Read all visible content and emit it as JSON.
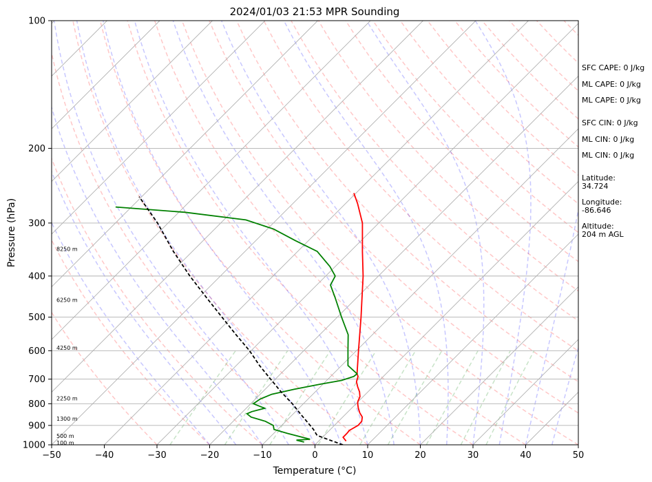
{
  "chart_data": {
    "type": "line",
    "title": "2024/01/03 21:53 MPR Sounding",
    "xlabel": "Temperature (°C)",
    "ylabel": "Pressure (hPa)",
    "xlim": [
      -50,
      50
    ],
    "ylim": [
      1000,
      100
    ],
    "yscale": "log",
    "skew": true,
    "grid": true,
    "x_ticks": [
      "−50",
      "−40",
      "−30",
      "−20",
      "−10",
      "0",
      "10",
      "20",
      "30",
      "40",
      "50"
    ],
    "y_ticks": [
      {
        "p": 1000,
        "label": "1000"
      },
      {
        "p": 900,
        "label": "900"
      },
      {
        "p": 800,
        "label": "800"
      },
      {
        "p": 700,
        "label": "700"
      },
      {
        "p": 600,
        "label": "600"
      },
      {
        "p": 500,
        "label": "500"
      },
      {
        "p": 400,
        "label": "400"
      },
      {
        "p": 300,
        "label": "300"
      },
      {
        "p": 200,
        "label": "200"
      },
      {
        "p": 100,
        "label": "100"
      }
    ],
    "series": [
      {
        "kind": "temperature",
        "color": "#ff0000",
        "points": [
          [
            980,
            5.2
          ],
          [
            960,
            3.9
          ],
          [
            940,
            3.9
          ],
          [
            925,
            3.8
          ],
          [
            900,
            4.5
          ],
          [
            880,
            4.4
          ],
          [
            860,
            3.7
          ],
          [
            840,
            2.4
          ],
          [
            820,
            1.3
          ],
          [
            800,
            0.3
          ],
          [
            790,
            -0.1
          ],
          [
            770,
            -0.6
          ],
          [
            750,
            -1.6
          ],
          [
            730,
            -2.9
          ],
          [
            710,
            -4.1
          ],
          [
            690,
            -4.8
          ],
          [
            680,
            -5.5
          ],
          [
            600,
            -9.6
          ],
          [
            500,
            -15.5
          ],
          [
            450,
            -19.0
          ],
          [
            400,
            -22.9
          ],
          [
            350,
            -27.7
          ],
          [
            300,
            -33.1
          ],
          [
            270,
            -37.7
          ],
          [
            255,
            -40.4
          ]
        ]
      },
      {
        "kind": "dewpoint",
        "color": "#008000",
        "points": [
          [
            985,
            -2.6
          ],
          [
            975,
            -4.4
          ],
          [
            970,
            -2.0
          ],
          [
            940,
            -7.4
          ],
          [
            920,
            -10.7
          ],
          [
            900,
            -11.6
          ],
          [
            880,
            -13.9
          ],
          [
            860,
            -17.4
          ],
          [
            845,
            -18.8
          ],
          [
            835,
            -18.3
          ],
          [
            820,
            -16.5
          ],
          [
            800,
            -19.5
          ],
          [
            780,
            -19.1
          ],
          [
            760,
            -17.8
          ],
          [
            740,
            -14.5
          ],
          [
            720,
            -10.6
          ],
          [
            705,
            -7.2
          ],
          [
            690,
            -5.6
          ],
          [
            680,
            -5.5
          ],
          [
            650,
            -8.8
          ],
          [
            600,
            -11.6
          ],
          [
            550,
            -14.6
          ],
          [
            500,
            -19.2
          ],
          [
            450,
            -24.1
          ],
          [
            420,
            -27.4
          ],
          [
            400,
            -28.2
          ],
          [
            380,
            -31.0
          ],
          [
            350,
            -36.3
          ],
          [
            330,
            -42.5
          ],
          [
            310,
            -48.8
          ],
          [
            295,
            -55.8
          ],
          [
            283,
            -68.8
          ],
          [
            275,
            -83.0
          ]
        ]
      },
      {
        "kind": "parcel",
        "color": "#000000",
        "dashed": true,
        "points": [
          [
            1000,
            5.3
          ],
          [
            970,
            1.3
          ],
          [
            950,
            -1.4
          ],
          [
            920,
            -3.2
          ],
          [
            900,
            -4.6
          ],
          [
            850,
            -8.3
          ],
          [
            800,
            -12.1
          ],
          [
            750,
            -16.5
          ],
          [
            700,
            -20.9
          ],
          [
            650,
            -25.6
          ],
          [
            600,
            -30.3
          ],
          [
            550,
            -35.9
          ],
          [
            500,
            -41.9
          ],
          [
            450,
            -48.5
          ],
          [
            400,
            -55.8
          ],
          [
            350,
            -63.6
          ],
          [
            300,
            -72.0
          ],
          [
            260,
            -80.5
          ]
        ]
      }
    ],
    "height_labels": [
      {
        "p": 988,
        "label": "100 m"
      },
      {
        "p": 953,
        "label": "500 m"
      },
      {
        "p": 868,
        "label": "1300 m"
      },
      {
        "p": 777,
        "label": "2250 m"
      },
      {
        "p": 590,
        "label": "4250 m"
      },
      {
        "p": 455,
        "label": "6250 m"
      },
      {
        "p": 345,
        "label": "8250 m"
      }
    ],
    "indices": [
      "SFC CAPE: 0 J/kg",
      "ML CAPE: 0 J/kg",
      "ML CAPE: 0 J/kg",
      "SFC CIN: 0 J/kg",
      "ML CIN: 0 J/kg",
      "ML CIN: 0 J/kg"
    ],
    "location": {
      "latitude_label": "Latitude:",
      "latitude": "34.724",
      "longitude_label": "Longitude:",
      "longitude": "-86.646",
      "altitude_label": "Altitude:",
      "altitude": "204 m AGL"
    }
  }
}
